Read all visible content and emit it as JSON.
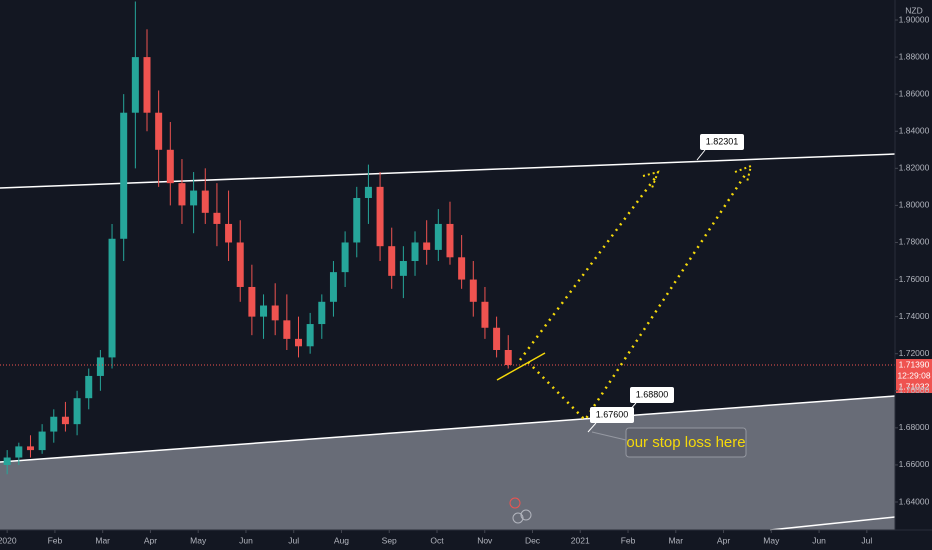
{
  "chart_data": {
    "type": "candlestick",
    "currency": "NZD",
    "x": [
      0,
      0.244,
      0.488,
      0.732,
      0.976,
      1.22,
      1.464,
      1.708,
      1.952,
      2.196,
      2.44,
      2.684,
      2.928,
      3.172,
      3.416,
      3.66,
      3.904,
      4.148,
      4.392,
      4.636,
      4.88,
      5.124,
      5.368,
      5.612,
      5.856,
      6.1,
      6.344,
      6.588,
      6.832,
      7.076,
      7.32,
      7.564,
      7.808,
      8.052,
      8.296,
      8.54,
      8.784,
      9.028,
      9.272,
      9.516,
      9.76,
      10.004,
      10.248,
      10.492
    ],
    "open": [
      1.66,
      1.664,
      1.67,
      1.668,
      1.678,
      1.686,
      1.682,
      1.696,
      1.708,
      1.718,
      1.782,
      1.85,
      1.88,
      1.85,
      1.83,
      1.812,
      1.8,
      1.808,
      1.796,
      1.79,
      1.78,
      1.756,
      1.74,
      1.746,
      1.738,
      1.728,
      1.724,
      1.736,
      1.748,
      1.764,
      1.78,
      1.804,
      1.81,
      1.778,
      1.762,
      1.77,
      1.78,
      1.776,
      1.79,
      1.772,
      1.76,
      1.748,
      1.734,
      1.722
    ],
    "high": [
      1.668,
      1.672,
      1.676,
      1.682,
      1.69,
      1.694,
      1.7,
      1.712,
      1.722,
      1.79,
      1.86,
      1.91,
      1.895,
      1.862,
      1.845,
      1.825,
      1.818,
      1.82,
      1.812,
      1.808,
      1.792,
      1.768,
      1.752,
      1.758,
      1.752,
      1.74,
      1.742,
      1.752,
      1.77,
      1.786,
      1.81,
      1.822,
      1.818,
      1.788,
      1.778,
      1.786,
      1.792,
      1.798,
      1.802,
      1.784,
      1.77,
      1.756,
      1.74,
      1.73
    ],
    "low": [
      1.655,
      1.66,
      1.664,
      1.666,
      1.672,
      1.678,
      1.676,
      1.69,
      1.7,
      1.712,
      1.77,
      1.82,
      1.84,
      1.81,
      1.8,
      1.79,
      1.785,
      1.79,
      1.778,
      1.77,
      1.748,
      1.73,
      1.728,
      1.73,
      1.722,
      1.718,
      1.72,
      1.728,
      1.74,
      1.756,
      1.772,
      1.79,
      1.77,
      1.755,
      1.75,
      1.762,
      1.768,
      1.77,
      1.768,
      1.755,
      1.74,
      1.728,
      1.718,
      1.712
    ],
    "close": [
      1.664,
      1.67,
      1.668,
      1.678,
      1.686,
      1.682,
      1.696,
      1.708,
      1.718,
      1.782,
      1.85,
      1.88,
      1.85,
      1.83,
      1.812,
      1.8,
      1.808,
      1.796,
      1.79,
      1.78,
      1.756,
      1.74,
      1.746,
      1.738,
      1.728,
      1.724,
      1.736,
      1.748,
      1.764,
      1.78,
      1.804,
      1.81,
      1.778,
      1.762,
      1.77,
      1.78,
      1.776,
      1.79,
      1.772,
      1.76,
      1.748,
      1.734,
      1.722,
      1.7139
    ],
    "up_color": "#26a69a",
    "down_color": "#ef5350",
    "xlim": [
      -0.15,
      18.59
    ],
    "ylim": [
      1.6249,
      1.9108
    ],
    "xticks": [
      {
        "value": 0,
        "label": "2020"
      },
      {
        "value": 1,
        "label": "Feb"
      },
      {
        "value": 2,
        "label": "Mar"
      },
      {
        "value": 3,
        "label": "Apr"
      },
      {
        "value": 4,
        "label": "May"
      },
      {
        "value": 5,
        "label": "Jun"
      },
      {
        "value": 6,
        "label": "Jul"
      },
      {
        "value": 7,
        "label": "Aug"
      },
      {
        "value": 8,
        "label": "Sep"
      },
      {
        "value": 9,
        "label": "Oct"
      },
      {
        "value": 10,
        "label": "Nov"
      },
      {
        "value": 11,
        "label": "Dec"
      },
      {
        "value": 12,
        "label": "2021"
      },
      {
        "value": 13,
        "label": "Feb"
      },
      {
        "value": 14,
        "label": "Mar"
      },
      {
        "value": 15,
        "label": "Apr"
      },
      {
        "value": 16,
        "label": "May"
      },
      {
        "value": 17,
        "label": "Jun"
      },
      {
        "value": 18,
        "label": "Jul"
      }
    ],
    "yticks": [
      {
        "value": 1.64,
        "label": "1.64000"
      },
      {
        "value": 1.66,
        "label": "1.66000"
      },
      {
        "value": 1.68,
        "label": "1.68000"
      },
      {
        "value": 1.7,
        "label": "1.70000"
      },
      {
        "value": 1.72,
        "label": "1.72000"
      },
      {
        "value": 1.74,
        "label": "1.74000"
      },
      {
        "value": 1.76,
        "label": "1.76000"
      },
      {
        "value": 1.78,
        "label": "1.78000"
      },
      {
        "value": 1.8,
        "label": "1.80000"
      },
      {
        "value": 1.82,
        "label": "1.82000"
      },
      {
        "value": 1.84,
        "label": "1.84000"
      },
      {
        "value": 1.86,
        "label": "1.86000"
      },
      {
        "value": 1.88,
        "label": "1.88000"
      },
      {
        "value": 1.9,
        "label": "1.90000"
      }
    ],
    "last_price": {
      "value": 1.7139,
      "label": "1.71390"
    },
    "countdown": "12:29:08",
    "bid_price": {
      "value": 1.71032,
      "label": "1.71032"
    },
    "grid": false,
    "annotations": {
      "resistance": "1.82301",
      "target": "1.68800",
      "support": "1.67600",
      "note": "our stop loss here"
    }
  }
}
